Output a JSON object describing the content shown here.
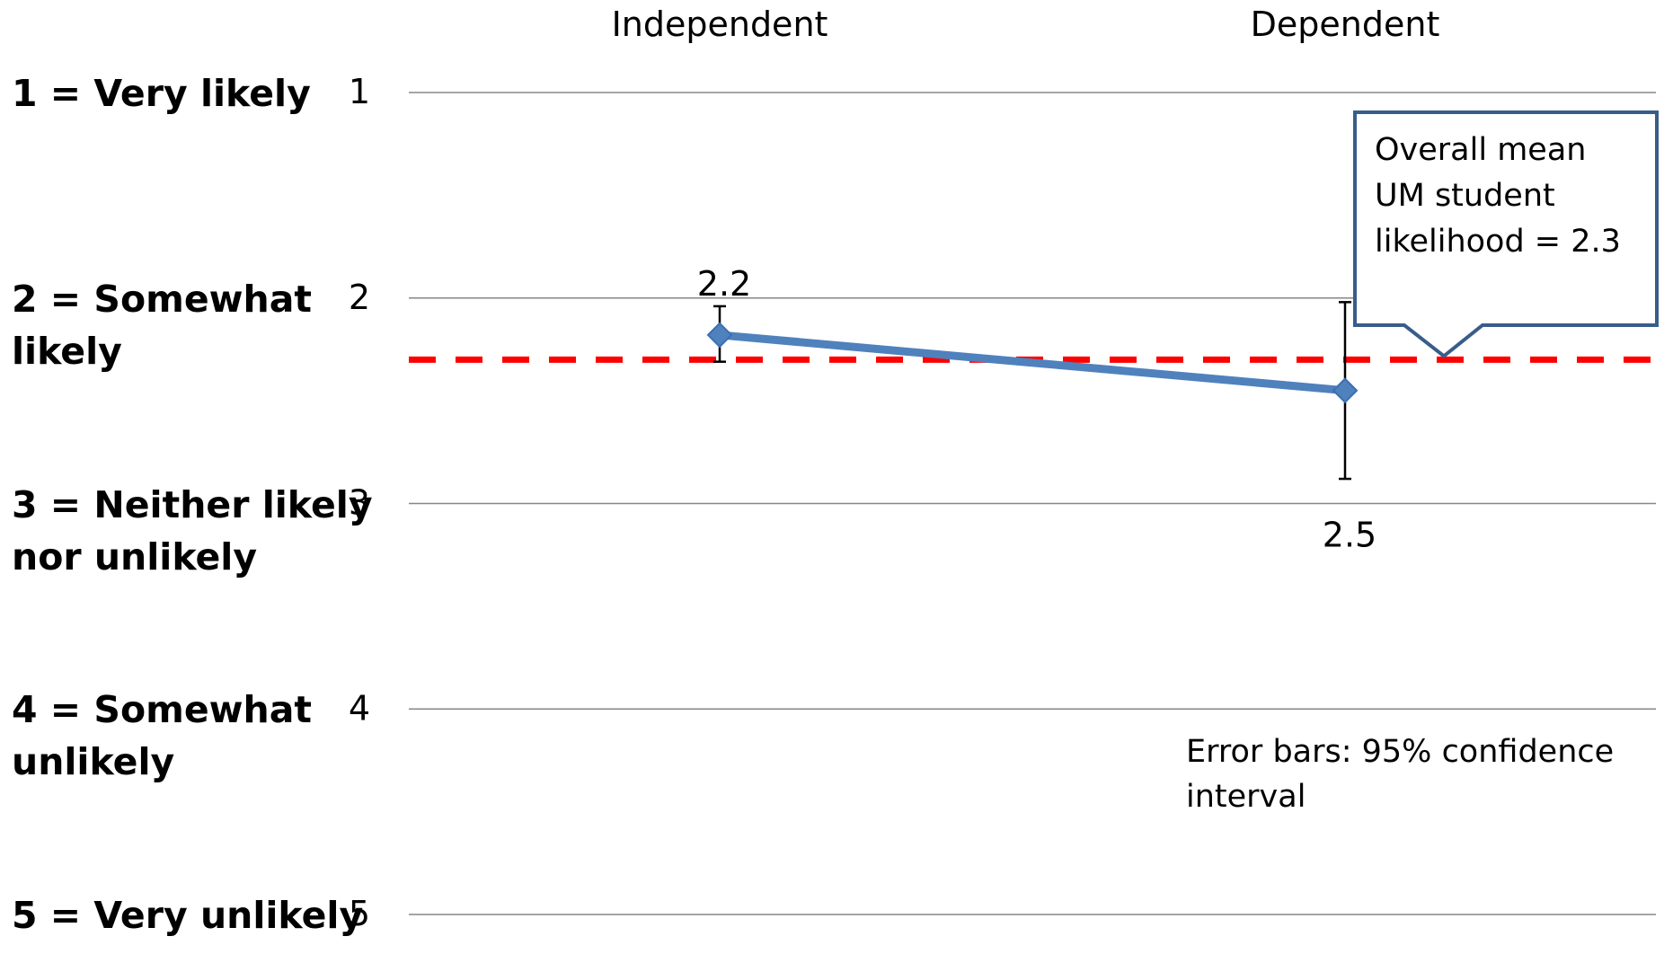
{
  "scale_labels": [
    {
      "level": 1,
      "lines": [
        "1 = Very likely"
      ]
    },
    {
      "level": 2,
      "lines": [
        "2 = Somewhat",
        "likely"
      ]
    },
    {
      "level": 3,
      "lines": [
        "3 = Neither likely",
        "nor unlikely"
      ]
    },
    {
      "level": 4,
      "lines": [
        "4 = Somewhat",
        "unlikely"
      ]
    },
    {
      "level": 5,
      "lines": [
        "5 = Very unlikely"
      ]
    }
  ],
  "callout": {
    "lines": [
      "Overall mean",
      "UM student",
      "likelihood = 2.3"
    ]
  },
  "note": {
    "lines": [
      "Error bars: 95% confidence",
      "interval"
    ]
  },
  "colors": {
    "series": "#4F81BD",
    "marker_stroke": "#3A6FB0",
    "reference_line": "#FF0000",
    "gridline": "#868686",
    "callout_border": "#385D8A"
  },
  "chart_data": {
    "type": "line",
    "categories": [
      "Independent",
      "Dependent"
    ],
    "x_axis_position": "top",
    "y_axis": {
      "min": 1,
      "max": 5,
      "ticks": [
        "1",
        "2",
        "3",
        "4",
        "5"
      ],
      "reversed": true
    },
    "grid": true,
    "series": [
      {
        "values": [
          2.18,
          2.45
        ],
        "data_labels": [
          "2.2",
          "2.5"
        ],
        "error_bars": [
          {
            "low": 2.04,
            "high": 2.31
          },
          {
            "low": 2.02,
            "high": 2.88
          }
        ]
      }
    ],
    "reference_line": {
      "value": 2.3,
      "style": "dashed"
    },
    "annotations": [
      "Overall mean UM student likelihood = 2.3",
      "Error bars: 95% confidence interval"
    ]
  }
}
